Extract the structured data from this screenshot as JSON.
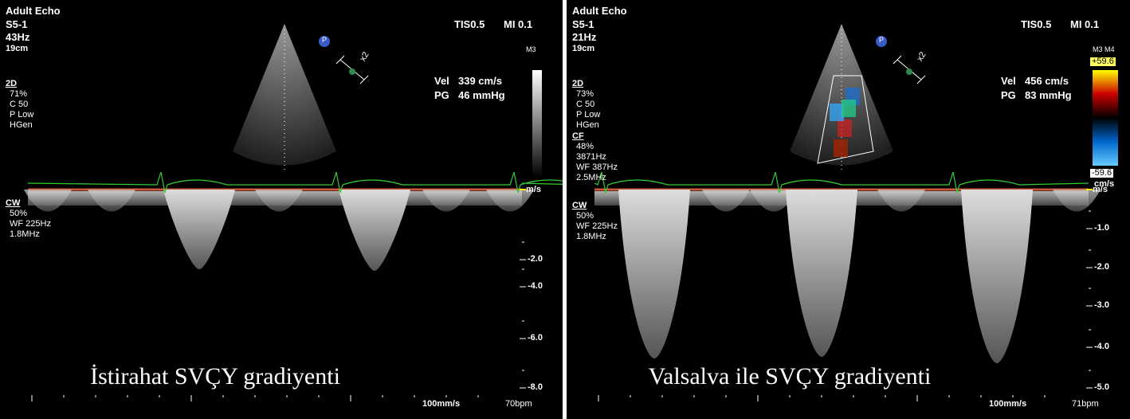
{
  "panels": [
    {
      "app": "Adult Echo",
      "probe": "S5-1",
      "frame_rate": "43Hz",
      "depth": "19cm",
      "tis": "TIS0.5",
      "mi": "MI 0.1",
      "marker": "P",
      "map": "M3",
      "zoom": "x2",
      "vel_label": "Vel",
      "vel_value": "339 cm/s",
      "pg_label": "PG",
      "pg_value": "46 mmHg",
      "params_2d": [
        "2D",
        "71%",
        "C 50",
        "P Low",
        "HGen"
      ],
      "params_cf": [],
      "params_cw": [
        "CW",
        "50%",
        "WF 225Hz",
        "1.8MHz"
      ],
      "scale_unit": "m/s",
      "scale_labels": [
        "-2.0",
        "-4.0",
        "-6.0",
        "-8.0"
      ],
      "sweep": "100mm/s",
      "heart_rate": "70bpm",
      "caption": "İstirahat SVÇY gradiyenti"
    },
    {
      "app": "Adult Echo",
      "probe": "S5-1",
      "frame_rate": "21Hz",
      "depth": "19cm",
      "tis": "TIS0.5",
      "mi": "MI 0.1",
      "marker": "P",
      "map": "M3 M4",
      "zoom": "x2",
      "vel_label": "Vel",
      "vel_value": "456 cm/s",
      "pg_label": "PG",
      "pg_value": "83 mmHg",
      "params_2d": [
        "2D",
        "73%",
        "C 50",
        "P Low",
        "HGen"
      ],
      "params_cf": [
        "CF",
        "48%",
        "3871Hz",
        "WF 387Hz",
        "2.5MHz"
      ],
      "params_cw": [
        "CW",
        "50%",
        "WF 225Hz",
        "1.8MHz"
      ],
      "color_max": "+59.6",
      "color_min": "-59.6",
      "color_unit": "cm/s",
      "scale_unit": "m/s",
      "scale_labels": [
        "-1.0",
        "-2.0",
        "-3.0",
        "-4.0",
        "-5.0"
      ],
      "sweep": "100mm/s",
      "heart_rate": "71bpm",
      "caption": "Valsalva ile SVÇY gradiyenti"
    }
  ]
}
